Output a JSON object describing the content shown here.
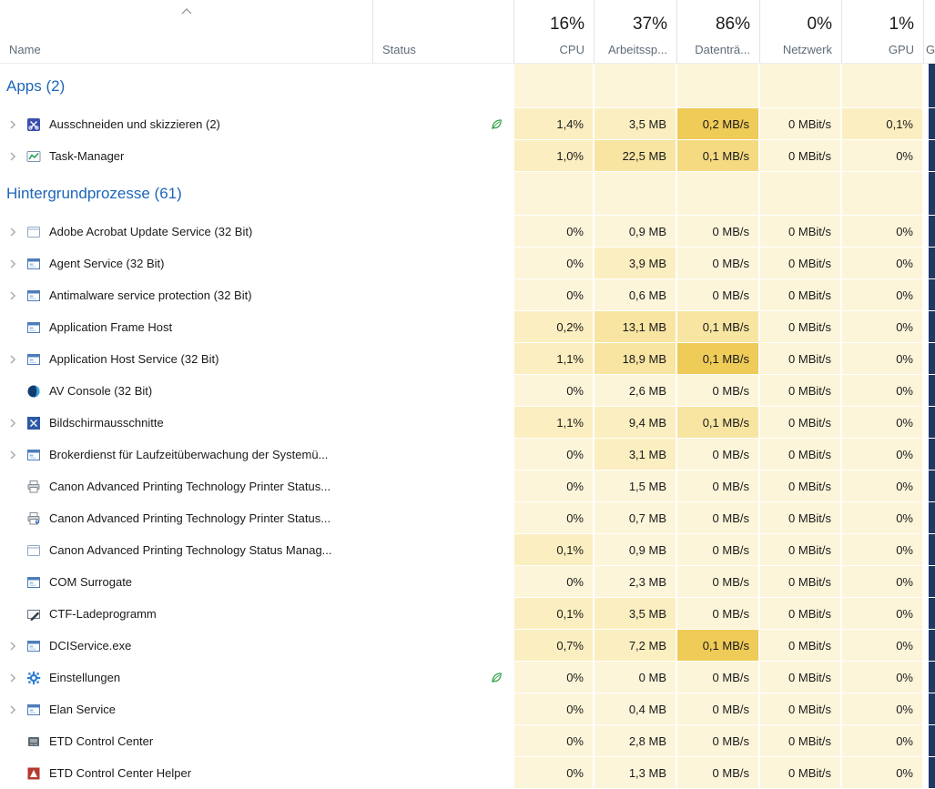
{
  "colors": {
    "section_title": "#1d66b8",
    "heat_palette": [
      "#fdf5da",
      "#fbeec0",
      "#f8e5a2",
      "#f5da82",
      "#efcb58"
    ],
    "edge_strip": "#203864",
    "leaf_green": "#2ea043",
    "header_label": "#5f6b77"
  },
  "header": {
    "sort_column": "Name",
    "sort_direction": "ascending",
    "columns": [
      {
        "label": "Name",
        "percent": "",
        "align": "left"
      },
      {
        "label": "Status",
        "percent": "",
        "align": "left"
      },
      {
        "label": "CPU",
        "percent": "16%",
        "align": "right"
      },
      {
        "label": "Arbeitssp...",
        "percent": "37%",
        "align": "right"
      },
      {
        "label": "Datenträ...",
        "percent": "86%",
        "align": "right"
      },
      {
        "label": "Netzwerk",
        "percent": "0%",
        "align": "right"
      },
      {
        "label": "GPU",
        "percent": "1%",
        "align": "right"
      },
      {
        "label": "G",
        "percent": "",
        "align": "left"
      }
    ]
  },
  "sections": [
    {
      "title": "Apps (2)",
      "rows": [
        {
          "name": "Ausschneiden und skizzieren (2)",
          "icon": "snip-sketch-icon",
          "expandable": true,
          "eco_leaf": true,
          "cpu": "1,4%",
          "memory": "3,5 MB",
          "disk": "0,2 MB/s",
          "network": "0 MBit/s",
          "gpu": "0,1%",
          "heat": [
            1,
            1,
            4,
            0,
            1
          ]
        },
        {
          "name": "Task-Manager",
          "icon": "task-manager-icon",
          "expandable": true,
          "eco_leaf": false,
          "cpu": "1,0%",
          "memory": "22,5 MB",
          "disk": "0,1 MB/s",
          "network": "0 MBit/s",
          "gpu": "0%",
          "heat": [
            1,
            2,
            3,
            0,
            0
          ]
        }
      ]
    },
    {
      "title": "Hintergrundprozesse (61)",
      "rows": [
        {
          "name": "Adobe Acrobat Update Service (32 Bit)",
          "icon": "window-outline-icon",
          "expandable": true,
          "eco_leaf": false,
          "cpu": "0%",
          "memory": "0,9 MB",
          "disk": "0 MB/s",
          "network": "0 MBit/s",
          "gpu": "0%",
          "heat": [
            0,
            0,
            0,
            0,
            0
          ]
        },
        {
          "name": "Agent Service (32 Bit)",
          "icon": "service-window-icon",
          "expandable": true,
          "eco_leaf": false,
          "cpu": "0%",
          "memory": "3,9 MB",
          "disk": "0 MB/s",
          "network": "0 MBit/s",
          "gpu": "0%",
          "heat": [
            0,
            1,
            0,
            0,
            0
          ]
        },
        {
          "name": "Antimalware service protection (32 Bit)",
          "icon": "service-window-icon",
          "expandable": true,
          "eco_leaf": false,
          "cpu": "0%",
          "memory": "0,6 MB",
          "disk": "0 MB/s",
          "network": "0 MBit/s",
          "gpu": "0%",
          "heat": [
            0,
            0,
            0,
            0,
            0
          ]
        },
        {
          "name": "Application Frame Host",
          "icon": "service-window-icon",
          "expandable": false,
          "eco_leaf": false,
          "cpu": "0,2%",
          "memory": "13,1 MB",
          "disk": "0,1 MB/s",
          "network": "0 MBit/s",
          "gpu": "0%",
          "heat": [
            1,
            2,
            2,
            0,
            0
          ]
        },
        {
          "name": "Application Host Service (32 Bit)",
          "icon": "service-window-icon",
          "expandable": true,
          "eco_leaf": false,
          "cpu": "1,1%",
          "memory": "18,9 MB",
          "disk": "0,1 MB/s",
          "network": "0 MBit/s",
          "gpu": "0%",
          "heat": [
            1,
            2,
            4,
            0,
            0
          ]
        },
        {
          "name": "AV Console (32 Bit)",
          "icon": "av-console-icon",
          "expandable": false,
          "eco_leaf": false,
          "cpu": "0%",
          "memory": "2,6 MB",
          "disk": "0 MB/s",
          "network": "0 MBit/s",
          "gpu": "0%",
          "heat": [
            0,
            0,
            0,
            0,
            0
          ]
        },
        {
          "name": "Bildschirmausschnitte",
          "icon": "screen-snip-icon",
          "expandable": true,
          "eco_leaf": false,
          "cpu": "1,1%",
          "memory": "9,4 MB",
          "disk": "0,1 MB/s",
          "network": "0 MBit/s",
          "gpu": "0%",
          "heat": [
            1,
            1,
            2,
            0,
            0
          ]
        },
        {
          "name": "Brokerdienst für Laufzeitüberwachung der Systemü...",
          "icon": "service-window-icon",
          "expandable": true,
          "eco_leaf": false,
          "cpu": "0%",
          "memory": "3,1 MB",
          "disk": "0 MB/s",
          "network": "0 MBit/s",
          "gpu": "0%",
          "heat": [
            0,
            1,
            0,
            0,
            0
          ]
        },
        {
          "name": "Canon Advanced Printing Technology Printer Status...",
          "icon": "printer-icon",
          "expandable": false,
          "eco_leaf": false,
          "cpu": "0%",
          "memory": "1,5 MB",
          "disk": "0 MB/s",
          "network": "0 MBit/s",
          "gpu": "0%",
          "heat": [
            0,
            0,
            0,
            0,
            0
          ]
        },
        {
          "name": "Canon Advanced Printing Technology Printer Status...",
          "icon": "printer-user-icon",
          "expandable": false,
          "eco_leaf": false,
          "cpu": "0%",
          "memory": "0,7 MB",
          "disk": "0 MB/s",
          "network": "0 MBit/s",
          "gpu": "0%",
          "heat": [
            0,
            0,
            0,
            0,
            0
          ]
        },
        {
          "name": "Canon Advanced Printing Technology Status Manag...",
          "icon": "window-outline-icon",
          "expandable": false,
          "eco_leaf": false,
          "cpu": "0,1%",
          "memory": "0,9 MB",
          "disk": "0 MB/s",
          "network": "0 MBit/s",
          "gpu": "0%",
          "heat": [
            1,
            0,
            0,
            0,
            0
          ]
        },
        {
          "name": "COM Surrogate",
          "icon": "service-window-icon",
          "expandable": false,
          "eco_leaf": false,
          "cpu": "0%",
          "memory": "2,3 MB",
          "disk": "0 MB/s",
          "network": "0 MBit/s",
          "gpu": "0%",
          "heat": [
            0,
            0,
            0,
            0,
            0
          ]
        },
        {
          "name": "CTF-Ladeprogramm",
          "icon": "ctf-icon",
          "expandable": false,
          "eco_leaf": false,
          "cpu": "0,1%",
          "memory": "3,5 MB",
          "disk": "0 MB/s",
          "network": "0 MBit/s",
          "gpu": "0%",
          "heat": [
            1,
            1,
            0,
            0,
            0
          ]
        },
        {
          "name": "DCIService.exe",
          "icon": "service-window-icon",
          "expandable": true,
          "eco_leaf": false,
          "cpu": "0,7%",
          "memory": "7,2 MB",
          "disk": "0,1 MB/s",
          "network": "0 MBit/s",
          "gpu": "0%",
          "heat": [
            1,
            1,
            4,
            0,
            0
          ]
        },
        {
          "name": "Einstellungen",
          "icon": "settings-gear-icon",
          "expandable": true,
          "eco_leaf": true,
          "cpu": "0%",
          "memory": "0 MB",
          "disk": "0 MB/s",
          "network": "0 MBit/s",
          "gpu": "0%",
          "heat": [
            0,
            0,
            0,
            0,
            0
          ]
        },
        {
          "name": "Elan Service",
          "icon": "service-window-icon",
          "expandable": true,
          "eco_leaf": false,
          "cpu": "0%",
          "memory": "0,4 MB",
          "disk": "0 MB/s",
          "network": "0 MBit/s",
          "gpu": "0%",
          "heat": [
            0,
            0,
            0,
            0,
            0
          ]
        },
        {
          "name": "ETD Control Center",
          "icon": "etd-icon",
          "expandable": false,
          "eco_leaf": false,
          "cpu": "0%",
          "memory": "2,8 MB",
          "disk": "0 MB/s",
          "network": "0 MBit/s",
          "gpu": "0%",
          "heat": [
            0,
            0,
            0,
            0,
            0
          ]
        },
        {
          "name": "ETD Control Center Helper",
          "icon": "etd-helper-icon",
          "expandable": false,
          "eco_leaf": false,
          "cpu": "0%",
          "memory": "1,3 MB",
          "disk": "0 MB/s",
          "network": "0 MBit/s",
          "gpu": "0%",
          "heat": [
            0,
            0,
            0,
            0,
            0
          ]
        }
      ]
    }
  ]
}
